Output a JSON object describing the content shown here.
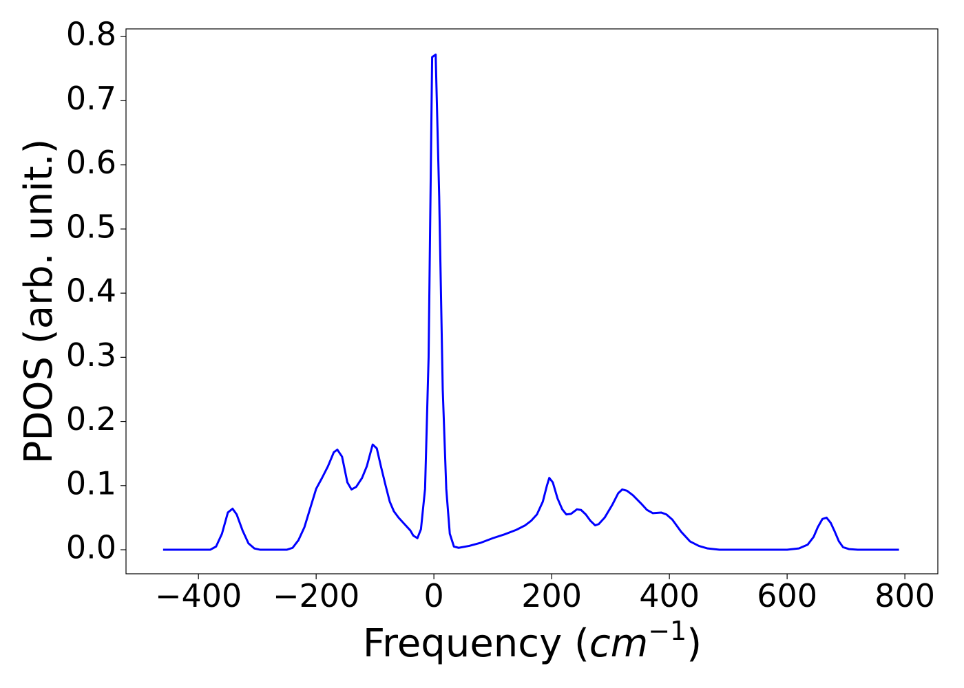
{
  "chart_data": {
    "type": "line",
    "x_label": {
      "text": "Frequency (",
      "unit": "cm",
      "exponent": "−1",
      "close": ")"
    },
    "y_label": "PDOS (arb. unit.)",
    "xlim": [
      -523,
      856
    ],
    "ylim": [
      -0.0375,
      0.812
    ],
    "xticks": [
      {
        "value": -400,
        "label": "−400"
      },
      {
        "value": -200,
        "label": "−200"
      },
      0,
      200,
      400,
      600,
      800
    ],
    "yticks": [
      {
        "value": 0,
        "label": "0.0"
      },
      0.1,
      0.2,
      0.3,
      0.4,
      0.5,
      0.6,
      0.7,
      0.8
    ],
    "grid": false,
    "x": [
      -460,
      -380,
      -370,
      -360,
      -350,
      -342,
      -335,
      -325,
      -315,
      -305,
      -295,
      -250,
      -240,
      -230,
      -220,
      -210,
      -200,
      -190,
      -180,
      -170,
      -164,
      -156,
      -147,
      -140,
      -132,
      -122,
      -114,
      -104,
      -97,
      -90,
      -82,
      -75,
      -68,
      -60,
      -50,
      -40,
      -35,
      -28,
      -22,
      -15,
      -9,
      -3,
      3,
      9,
      15,
      21,
      27,
      34,
      42,
      60,
      80,
      100,
      120,
      140,
      155,
      165,
      175,
      185,
      192,
      196,
      202,
      210,
      218,
      225,
      233,
      243,
      250,
      258,
      266,
      274,
      280,
      290,
      303,
      313,
      320,
      328,
      338,
      352,
      362,
      372,
      386,
      395,
      405,
      420,
      435,
      450,
      465,
      485,
      600,
      620,
      635,
      645,
      652,
      660,
      667,
      674,
      681,
      688,
      695,
      705,
      720,
      790
    ],
    "series": [
      {
        "name": "PDOS",
        "color": "#0000ff",
        "values": [
          0,
          0,
          0.005,
          0.025,
          0.058,
          0.064,
          0.055,
          0.03,
          0.01,
          0.002,
          0,
          0,
          0.003,
          0.015,
          0.035,
          0.065,
          0.095,
          0.112,
          0.13,
          0.152,
          0.156,
          0.145,
          0.105,
          0.094,
          0.098,
          0.112,
          0.13,
          0.164,
          0.158,
          0.13,
          0.1,
          0.075,
          0.06,
          0.05,
          0.04,
          0.03,
          0.022,
          0.018,
          0.032,
          0.095,
          0.3,
          0.768,
          0.772,
          0.55,
          0.25,
          0.095,
          0.025,
          0.005,
          0.003,
          0.006,
          0.011,
          0.018,
          0.024,
          0.031,
          0.038,
          0.045,
          0.055,
          0.075,
          0.1,
          0.112,
          0.105,
          0.08,
          0.063,
          0.055,
          0.056,
          0.063,
          0.062,
          0.055,
          0.045,
          0.038,
          0.04,
          0.05,
          0.07,
          0.088,
          0.094,
          0.092,
          0.085,
          0.072,
          0.062,
          0.057,
          0.058,
          0.055,
          0.047,
          0.028,
          0.013,
          0.006,
          0.002,
          0,
          0,
          0.002,
          0.008,
          0.02,
          0.035,
          0.048,
          0.05,
          0.042,
          0.028,
          0.013,
          0.004,
          0.001,
          0,
          0
        ]
      }
    ]
  }
}
